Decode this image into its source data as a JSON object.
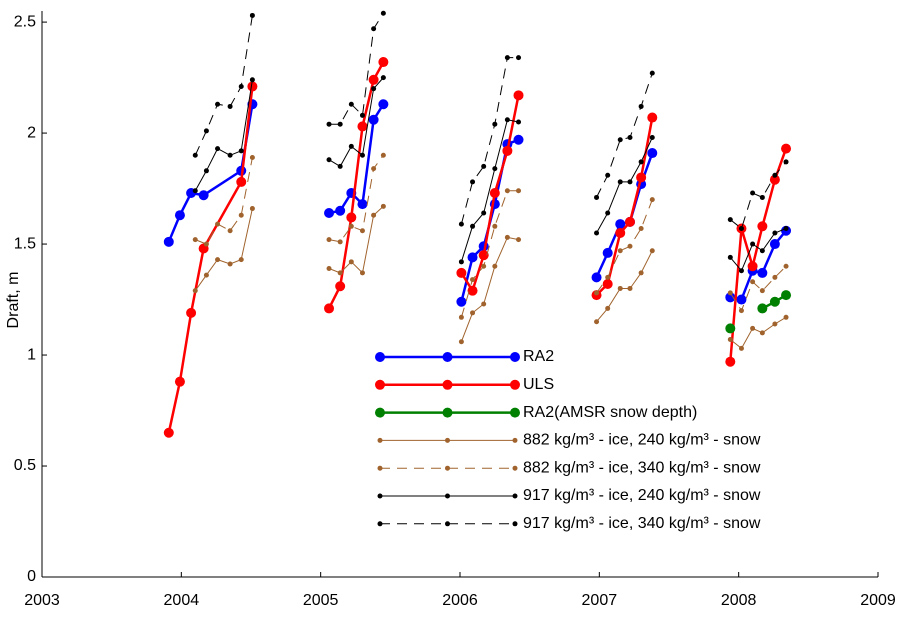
{
  "chart_data": {
    "type": "line",
    "ylabel": "Draft, m",
    "xlim": [
      2003,
      2009
    ],
    "xticks": [
      2003,
      2004,
      2005,
      2006,
      2007,
      2008,
      2009
    ],
    "ylim": [
      0,
      2.55
    ],
    "yticks": [
      0,
      0.5,
      1,
      1.5,
      2,
      2.5
    ],
    "legend": "bottom-center",
    "series": [
      {
        "name": "RA2",
        "color": "#0000ff",
        "line_width": 2.5,
        "marker_radius": 5,
        "dashed": false,
        "x": [
          2003.91,
          2003.99,
          2004.07,
          2004.16,
          2004.43,
          2004.51,
          null,
          2005.06,
          2005.14,
          2005.22,
          2005.3,
          2005.38,
          2005.45,
          null,
          2006.01,
          2006.09,
          2006.17,
          2006.25,
          2006.34,
          2006.42,
          null,
          2006.98,
          2007.06,
          2007.15,
          2007.22,
          2007.3,
          2007.38,
          null,
          2007.94,
          2008.02,
          2008.1,
          2008.17,
          2008.26,
          2008.34
        ],
        "values": [
          1.51,
          1.63,
          1.73,
          1.72,
          1.83,
          2.13,
          null,
          1.64,
          1.65,
          1.73,
          1.68,
          2.06,
          2.13,
          null,
          1.24,
          1.44,
          1.49,
          1.68,
          1.95,
          1.97,
          null,
          1.35,
          1.46,
          1.59,
          1.6,
          1.77,
          1.91,
          null,
          1.26,
          1.25,
          1.38,
          1.37,
          1.5,
          1.56
        ]
      },
      {
        "name": "ULS",
        "color": "#ff0000",
        "line_width": 2.5,
        "marker_radius": 5,
        "dashed": false,
        "x": [
          2003.91,
          2003.99,
          2004.07,
          2004.16,
          2004.43,
          2004.51,
          null,
          2005.06,
          2005.14,
          2005.22,
          2005.3,
          2005.38,
          2005.45,
          null,
          2006.01,
          2006.09,
          2006.17,
          2006.25,
          2006.34,
          2006.42,
          null,
          2006.98,
          2007.06,
          2007.15,
          2007.22,
          2007.3,
          2007.38,
          null,
          2007.94,
          2008.02,
          2008.1,
          2008.17,
          2008.26,
          2008.34
        ],
        "values": [
          0.65,
          0.88,
          1.19,
          1.48,
          1.78,
          2.21,
          null,
          1.21,
          1.31,
          1.62,
          2.03,
          2.24,
          2.32,
          null,
          1.37,
          1.29,
          1.45,
          1.73,
          1.92,
          2.17,
          null,
          1.27,
          1.32,
          1.55,
          1.6,
          1.8,
          2.07,
          null,
          0.97,
          1.57,
          1.4,
          1.58,
          1.79,
          1.93
        ]
      },
      {
        "name": "RA2(AMSR snow depth)",
        "color": "#008000",
        "line_width": 2.5,
        "marker_radius": 5,
        "dashed": false,
        "x": [
          2007.94,
          null,
          2008.17,
          2008.26,
          2008.34
        ],
        "values": [
          1.12,
          null,
          1.21,
          1.24,
          1.27
        ]
      },
      {
        "name": "882 kg/m³ - ice, 240 kg/m³ - snow",
        "color": "#a0632d",
        "line_width": 1,
        "marker_radius": 2.5,
        "dashed": false,
        "x": [
          2004.1,
          2004.18,
          2004.26,
          2004.35,
          2004.43,
          2004.51,
          null,
          2005.06,
          2005.14,
          2005.22,
          2005.3,
          2005.38,
          2005.45,
          null,
          2006.01,
          2006.09,
          2006.17,
          2006.25,
          2006.34,
          2006.42,
          null,
          2006.98,
          2007.06,
          2007.15,
          2007.22,
          2007.3,
          2007.38,
          null,
          2007.94,
          2008.02,
          2008.1,
          2008.17,
          2008.26,
          2008.34
        ],
        "values": [
          1.29,
          1.36,
          1.43,
          1.41,
          1.43,
          1.66,
          null,
          1.39,
          1.37,
          1.42,
          1.37,
          1.63,
          1.67,
          null,
          1.06,
          1.19,
          1.23,
          1.4,
          1.53,
          1.52,
          null,
          1.15,
          1.21,
          1.3,
          1.3,
          1.37,
          1.47,
          null,
          1.07,
          1.03,
          1.12,
          1.1,
          1.14,
          1.17
        ]
      },
      {
        "name": "882 kg/m³ - ice, 340 kg/m³ - snow",
        "color": "#a0632d",
        "line_width": 1,
        "marker_radius": 2.5,
        "dashed": true,
        "x": [
          2004.1,
          2004.18,
          2004.26,
          2004.35,
          2004.43,
          2004.51,
          null,
          2005.06,
          2005.14,
          2005.22,
          2005.3,
          2005.38,
          2005.45,
          null,
          2006.01,
          2006.09,
          2006.17,
          2006.25,
          2006.34,
          2006.42,
          null,
          2006.98,
          2007.06,
          2007.15,
          2007.22,
          2007.3,
          2007.38,
          null,
          2007.94,
          2008.02,
          2008.1,
          2008.17,
          2008.26,
          2008.34
        ],
        "values": [
          1.52,
          1.5,
          1.59,
          1.56,
          1.63,
          1.89,
          null,
          1.52,
          1.51,
          1.58,
          1.56,
          1.84,
          1.9,
          null,
          1.17,
          1.34,
          1.4,
          1.58,
          1.74,
          1.74,
          null,
          1.28,
          1.35,
          1.47,
          1.49,
          1.57,
          1.7,
          null,
          1.28,
          1.2,
          1.33,
          1.29,
          1.35,
          1.4
        ]
      },
      {
        "name": "917 kg/m³ - ice, 240 kg/m³ - snow",
        "color": "#000000",
        "line_width": 1,
        "marker_radius": 2.5,
        "dashed": false,
        "x": [
          2004.1,
          2004.18,
          2004.26,
          2004.35,
          2004.43,
          2004.51,
          null,
          2005.06,
          2005.14,
          2005.22,
          2005.3,
          2005.38,
          2005.45,
          null,
          2006.01,
          2006.09,
          2006.17,
          2006.25,
          2006.34,
          2006.42,
          null,
          2006.98,
          2007.06,
          2007.15,
          2007.22,
          2007.3,
          2007.38,
          null,
          2007.94,
          2008.02,
          2008.1,
          2008.17,
          2008.26,
          2008.34
        ],
        "values": [
          1.74,
          1.83,
          1.93,
          1.9,
          1.92,
          2.24,
          null,
          1.88,
          1.85,
          1.94,
          1.9,
          2.2,
          2.25,
          null,
          1.42,
          1.58,
          1.64,
          1.84,
          2.06,
          2.05,
          null,
          1.55,
          1.64,
          1.78,
          1.78,
          1.87,
          1.98,
          null,
          1.44,
          1.38,
          1.5,
          1.47,
          1.55,
          1.57
        ]
      },
      {
        "name": "917 kg/m³ - ice, 340 kg/m³ - snow",
        "color": "#000000",
        "line_width": 1,
        "marker_radius": 2.5,
        "dashed": true,
        "x": [
          2004.1,
          2004.18,
          2004.26,
          2004.35,
          2004.43,
          2004.51,
          null,
          2005.06,
          2005.14,
          2005.22,
          2005.3,
          2005.38,
          2005.45,
          null,
          2006.01,
          2006.09,
          2006.17,
          2006.25,
          2006.34,
          2006.42,
          null,
          2006.98,
          2007.06,
          2007.15,
          2007.22,
          2007.3,
          2007.38,
          null,
          2007.94,
          2008.02,
          2008.1,
          2008.17,
          2008.26,
          2008.34
        ],
        "values": [
          1.9,
          2.01,
          2.13,
          2.12,
          2.21,
          2.53,
          null,
          2.04,
          2.04,
          2.13,
          2.08,
          2.47,
          2.54,
          null,
          1.59,
          1.78,
          1.85,
          2.04,
          2.34,
          2.34,
          null,
          1.71,
          1.81,
          1.97,
          1.98,
          2.12,
          2.27,
          null,
          1.61,
          1.57,
          1.73,
          1.71,
          1.81,
          1.87
        ]
      }
    ]
  }
}
